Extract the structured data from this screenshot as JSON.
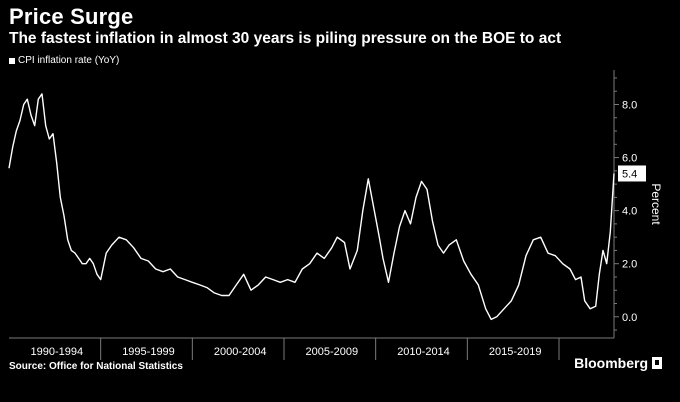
{
  "header": {
    "title": "Price Surge",
    "subtitle": "The fastest inflation in almost 30 years is piling pressure on the BOE to act"
  },
  "legend": {
    "label": "CPI inflation rate (YoY)"
  },
  "footer": {
    "source": "Source: Office for National Statistics",
    "brand": "Bloomberg"
  },
  "colors": {
    "background": "#000000",
    "line": "#ffffff",
    "axis": "#7a7a7a"
  },
  "chart_data": {
    "type": "line",
    "title": "Price Surge",
    "subtitle": "The fastest inflation in almost 30 years is piling pressure on the BOE to act",
    "xlabel": "",
    "ylabel": "Percent",
    "xlim": [
      1989.0,
      2022.0
    ],
    "ylim": [
      -0.8,
      9.3
    ],
    "yticks": [
      0.0,
      2.0,
      4.0,
      6.0,
      8.0
    ],
    "ytick_labels": [
      "0.0",
      "2.0",
      "4.0",
      "6.0",
      "8.0"
    ],
    "x_groups": [
      {
        "label": "1990-1994",
        "start": 1989.0,
        "end": 1994.0
      },
      {
        "label": "1995-1999",
        "start": 1994.0,
        "end": 1999.0
      },
      {
        "label": "2000-2004",
        "start": 1999.0,
        "end": 2004.0
      },
      {
        "label": "2005-2009",
        "start": 2004.0,
        "end": 2009.0
      },
      {
        "label": "2010-2014",
        "start": 2009.0,
        "end": 2014.0
      },
      {
        "label": "2015-2019",
        "start": 2014.0,
        "end": 2019.0
      }
    ],
    "x_group_dividers": [
      1994.0,
      1999.0,
      2004.0,
      2009.0,
      2014.0,
      2019.0
    ],
    "last_value_label": "5.4",
    "grid": false,
    "legend_position": "top-left",
    "series": [
      {
        "name": "CPI inflation rate (YoY)",
        "x": [
          1989.0,
          1989.2,
          1989.4,
          1989.6,
          1989.8,
          1990.0,
          1990.2,
          1990.4,
          1990.6,
          1990.8,
          1991.0,
          1991.2,
          1991.4,
          1991.6,
          1991.8,
          1992.0,
          1992.2,
          1992.4,
          1992.6,
          1992.8,
          1993.0,
          1993.2,
          1993.4,
          1993.6,
          1993.8,
          1994.0,
          1994.3,
          1994.6,
          1995.0,
          1995.4,
          1995.8,
          1996.2,
          1996.6,
          1997.0,
          1997.4,
          1997.8,
          1998.2,
          1998.6,
          1999.0,
          1999.4,
          1999.8,
          2000.2,
          2000.6,
          2001.0,
          2001.4,
          2001.8,
          2002.2,
          2002.6,
          2003.0,
          2003.4,
          2003.8,
          2004.2,
          2004.6,
          2005.0,
          2005.4,
          2005.8,
          2006.2,
          2006.6,
          2006.9,
          2007.3,
          2007.6,
          2008.0,
          2008.3,
          2008.6,
          2008.9,
          2009.2,
          2009.4,
          2009.7,
          2010.0,
          2010.3,
          2010.6,
          2010.9,
          2011.2,
          2011.5,
          2011.8,
          2012.1,
          2012.4,
          2012.7,
          2013.0,
          2013.4,
          2013.8,
          2014.2,
          2014.6,
          2015.0,
          2015.3,
          2015.6,
          2016.0,
          2016.4,
          2016.8,
          2017.2,
          2017.6,
          2018.0,
          2018.4,
          2018.8,
          2019.2,
          2019.6,
          2019.9,
          2020.2,
          2020.4,
          2020.7,
          2021.0,
          2021.2,
          2021.4,
          2021.6,
          2021.8,
          2022.0
        ],
        "y": [
          5.6,
          6.4,
          7.0,
          7.4,
          8.0,
          8.2,
          7.6,
          7.2,
          8.2,
          8.4,
          7.2,
          6.7,
          6.9,
          5.8,
          4.5,
          3.8,
          2.9,
          2.5,
          2.4,
          2.2,
          2.0,
          2.0,
          2.2,
          2.0,
          1.6,
          1.4,
          2.4,
          2.7,
          3.0,
          2.9,
          2.6,
          2.2,
          2.1,
          1.8,
          1.7,
          1.8,
          1.5,
          1.4,
          1.3,
          1.2,
          1.1,
          0.9,
          0.8,
          0.8,
          1.2,
          1.6,
          1.0,
          1.2,
          1.5,
          1.4,
          1.3,
          1.4,
          1.3,
          1.8,
          2.0,
          2.4,
          2.2,
          2.6,
          3.0,
          2.8,
          1.8,
          2.5,
          4.0,
          5.2,
          4.1,
          3.0,
          2.2,
          1.3,
          2.4,
          3.4,
          4.0,
          3.5,
          4.5,
          5.1,
          4.8,
          3.6,
          2.7,
          2.4,
          2.7,
          2.9,
          2.1,
          1.6,
          1.2,
          0.3,
          -0.1,
          0.0,
          0.3,
          0.6,
          1.2,
          2.3,
          2.9,
          3.0,
          2.4,
          2.3,
          2.0,
          1.8,
          1.4,
          1.5,
          0.6,
          0.3,
          0.4,
          1.6,
          2.5,
          2.0,
          3.2,
          5.4
        ]
      }
    ]
  }
}
